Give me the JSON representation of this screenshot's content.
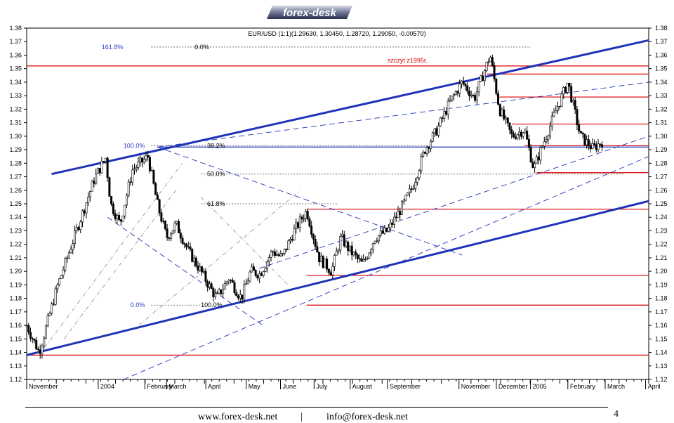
{
  "logo": {
    "text": "forex-desk"
  },
  "footer": {
    "website": "www.forex-desk.net",
    "separator": "|",
    "email": "info@forex-desk.net",
    "page_number": "4"
  },
  "chart_data": {
    "type": "candlestick",
    "title": "EUR/USD (1:1)(1.29630, 1.30450, 1.28720, 1.29050, -0.00570)",
    "ylim": [
      1.12,
      1.38
    ],
    "y_ticks": [
      1.12,
      1.13,
      1.14,
      1.15,
      1.16,
      1.17,
      1.18,
      1.19,
      1.2,
      1.21,
      1.22,
      1.23,
      1.24,
      1.25,
      1.26,
      1.27,
      1.28,
      1.29,
      1.3,
      1.31,
      1.32,
      1.33,
      1.34,
      1.35,
      1.36,
      1.37,
      1.38
    ],
    "x_labels": [
      "November",
      "2004",
      "February",
      "March",
      "April",
      "May",
      "June",
      "July",
      "August",
      "September",
      "November",
      "December",
      "2005",
      "February",
      "March",
      "April"
    ],
    "x_label_pos": [
      0.0,
      0.115,
      0.19,
      0.225,
      0.288,
      0.353,
      0.408,
      0.462,
      0.52,
      0.58,
      0.695,
      0.755,
      0.81,
      0.87,
      0.93,
      0.995
    ],
    "path_points": [
      [
        0.0,
        1.16
      ],
      [
        0.02,
        1.14
      ],
      [
        0.05,
        1.19
      ],
      [
        0.08,
        1.23
      ],
      [
        0.11,
        1.27
      ],
      [
        0.127,
        1.284
      ],
      [
        0.135,
        1.25
      ],
      [
        0.15,
        1.235
      ],
      [
        0.17,
        1.275
      ],
      [
        0.195,
        1.285
      ],
      [
        0.21,
        1.25
      ],
      [
        0.225,
        1.225
      ],
      [
        0.24,
        1.235
      ],
      [
        0.26,
        1.215
      ],
      [
        0.28,
        1.2
      ],
      [
        0.305,
        1.18
      ],
      [
        0.325,
        1.195
      ],
      [
        0.345,
        1.18
      ],
      [
        0.36,
        1.2
      ],
      [
        0.375,
        1.198
      ],
      [
        0.395,
        1.215
      ],
      [
        0.41,
        1.21
      ],
      [
        0.43,
        1.23
      ],
      [
        0.45,
        1.245
      ],
      [
        0.47,
        1.21
      ],
      [
        0.49,
        1.2
      ],
      [
        0.505,
        1.225
      ],
      [
        0.52,
        1.215
      ],
      [
        0.54,
        1.205
      ],
      [
        0.56,
        1.225
      ],
      [
        0.58,
        1.23
      ],
      [
        0.6,
        1.245
      ],
      [
        0.62,
        1.262
      ],
      [
        0.64,
        1.29
      ],
      [
        0.66,
        1.305
      ],
      [
        0.68,
        1.325
      ],
      [
        0.7,
        1.34
      ],
      [
        0.72,
        1.328
      ],
      [
        0.745,
        1.36
      ],
      [
        0.76,
        1.32
      ],
      [
        0.78,
        1.3
      ],
      [
        0.8,
        1.305
      ],
      [
        0.815,
        1.276
      ],
      [
        0.835,
        1.3
      ],
      [
        0.85,
        1.318
      ],
      [
        0.87,
        1.34
      ],
      [
        0.89,
        1.3
      ],
      [
        0.91,
        1.291
      ],
      [
        0.925,
        1.296
      ]
    ],
    "horizontal_lines_red": [
      1.352,
      1.346,
      1.329,
      1.309,
      1.293,
      1.273,
      1.246,
      1.197,
      1.175,
      1.138
    ],
    "channel_lines_blue": [
      {
        "x": [
          0.04,
          1.0
        ],
        "y": [
          1.272,
          1.371
        ]
      },
      {
        "x": [
          0.0,
          1.0
        ],
        "y": [
          1.138,
          1.252
        ]
      },
      {
        "x": [
          0.21,
          1.0
        ],
        "y": [
          1.292,
          1.292
        ]
      }
    ],
    "trend_lines_dashed": [
      {
        "x": [
          0.21,
          1.0
        ],
        "y": [
          1.292,
          1.34
        ]
      },
      {
        "x": [
          0.13,
          0.38
        ],
        "y": [
          1.24,
          1.16
        ]
      },
      {
        "x": [
          0.21,
          0.7
        ],
        "y": [
          1.292,
          1.212
        ]
      },
      {
        "x": [
          0.36,
          1.0
        ],
        "y": [
          1.2,
          1.3
        ]
      },
      {
        "x": [
          0.13,
          1.0
        ],
        "y": [
          1.115,
          1.285
        ]
      }
    ],
    "fibonacci": [
      {
        "label": "161.8%",
        "value": 1.366
      },
      {
        "label": "0.0%",
        "value": 1.366
      },
      {
        "label": "100.0%",
        "value": 1.293
      },
      {
        "label": "38.2%",
        "value": 1.293
      },
      {
        "label": "50.0%",
        "value": 1.272
      },
      {
        "label": "61.8%",
        "value": 1.25
      },
      {
        "label": "0.0%",
        "value": 1.175
      },
      {
        "label": "100.0%",
        "value": 1.175
      }
    ],
    "annotation": {
      "text": "szczyt z1995r.",
      "value": 1.356
    },
    "colors": {
      "candle": "#000000",
      "support": "#dd0000",
      "channel": "#1f33b8",
      "fib_label": "#2b3cc4",
      "grid": "#000000"
    }
  }
}
